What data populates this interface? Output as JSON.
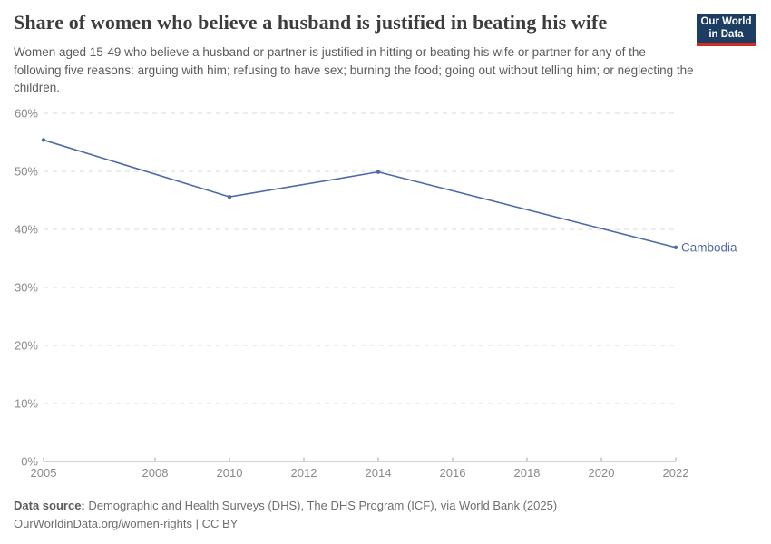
{
  "header": {
    "title": "Share of women who believe a husband is justified in beating his wife",
    "subtitle": "Women aged 15-49 who believe a husband or partner is justified in hitting or beating his wife or partner for any of the following five reasons: arguing with him; refusing to have sex; burning the food; going out without telling him; or neglecting the children.",
    "logo": {
      "line1": "Our World",
      "line2": "in Data",
      "bg_color": "#1d3d63",
      "accent_color": "#d42b21"
    }
  },
  "chart_data": {
    "type": "line",
    "title": "Share of women who believe a husband is justified in beating his wife",
    "series": [
      {
        "name": "Cambodia",
        "color": "#4c6ba8",
        "x": [
          2005,
          2010,
          2014,
          2022
        ],
        "values": [
          55.4,
          45.6,
          49.9,
          36.9
        ]
      }
    ],
    "xlabel": "",
    "ylabel": "",
    "xlim": [
      2005,
      2022
    ],
    "ylim": [
      0,
      60
    ],
    "x_ticks": [
      2005,
      2008,
      2010,
      2012,
      2014,
      2016,
      2018,
      2020,
      2022
    ],
    "y_ticks": [
      0,
      10,
      20,
      30,
      40,
      50,
      60
    ],
    "y_tick_suffix": "%",
    "grid": "dashed-horizontal",
    "legend_position": "end-of-line-label",
    "entity_label": "Cambodia",
    "colors": {
      "line": "#4c6ba8",
      "gridline": "#dadada",
      "axis_line": "#a5a5a5",
      "tick_text": "#8a8a8a"
    }
  },
  "footer": {
    "datasource_label": "Data source:",
    "datasource_text": " Demographic and Health Surveys (DHS), The DHS Program (ICF), via World Bank (2025)",
    "license_text": "OurWorldinData.org/women-rights | CC BY"
  }
}
